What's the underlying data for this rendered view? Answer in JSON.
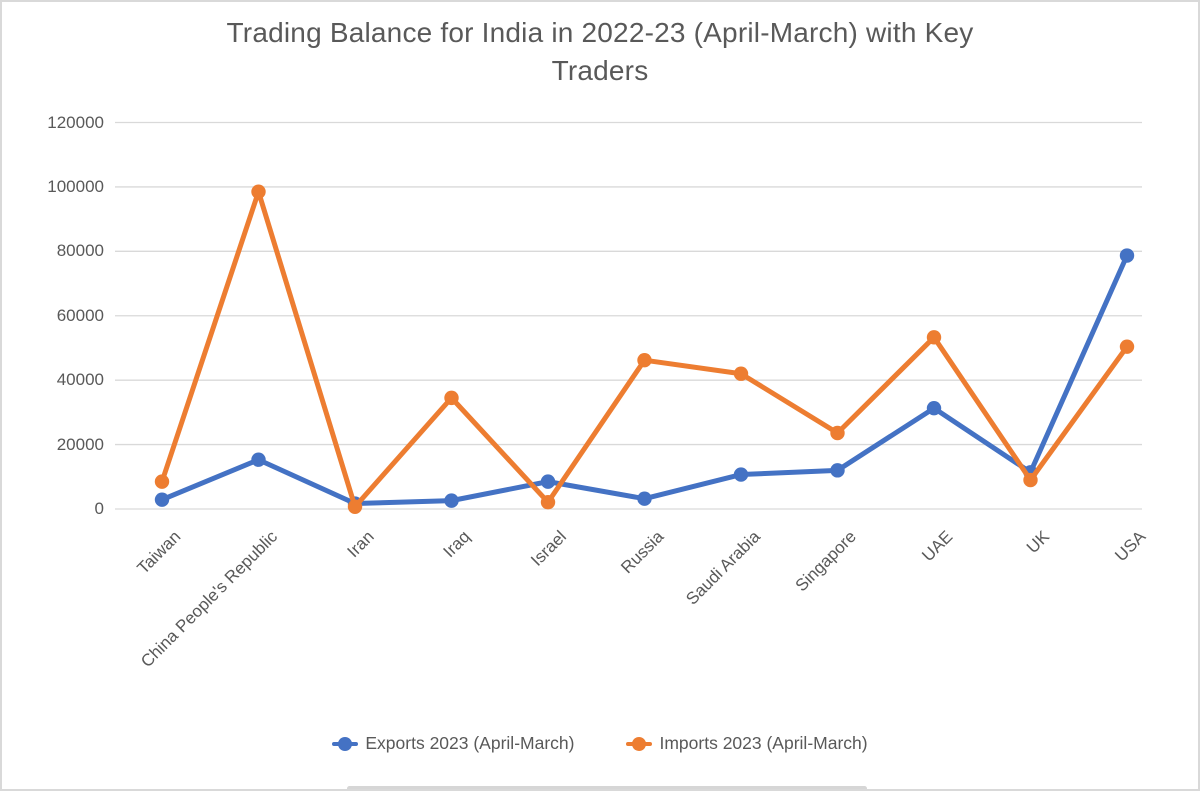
{
  "page": {
    "background": "#ffffff",
    "border_color": "#d9d9d9",
    "text_color": "#595959"
  },
  "chart_data": {
    "type": "line",
    "title": "Trading Balance for India in 2022-23 (April-March) with Key Traders",
    "title_lines": [
      "Trading Balance for India in 2022-23 (April-March) with Key",
      "Traders"
    ],
    "categories": [
      "Taiwan",
      "China People's Republic",
      "Iran",
      "Iraq",
      "Israel",
      "Russia",
      "Saudi Arabia",
      "Singapore",
      "UAE",
      "UK",
      "USA"
    ],
    "series": [
      {
        "name": "Exports 2023 (April-March)",
        "color": "#4472C4",
        "values": [
          2900,
          15300,
          1700,
          2600,
          8500,
          3200,
          10700,
          12000,
          31300,
          11400,
          78700
        ]
      },
      {
        "name": "Imports 2023 (April-March)",
        "color": "#ED7D31",
        "values": [
          8500,
          98500,
          700,
          34500,
          2100,
          46200,
          42000,
          23600,
          53300,
          9000,
          50400
        ]
      }
    ],
    "y_axis": {
      "min": 0,
      "max": 120000,
      "step": 20000,
      "ticks": [
        0,
        20000,
        40000,
        60000,
        80000,
        100000,
        120000
      ]
    },
    "grid": true,
    "gridline_color": "#D9D9D9",
    "legend_position": "bottom",
    "marker": "circle"
  }
}
